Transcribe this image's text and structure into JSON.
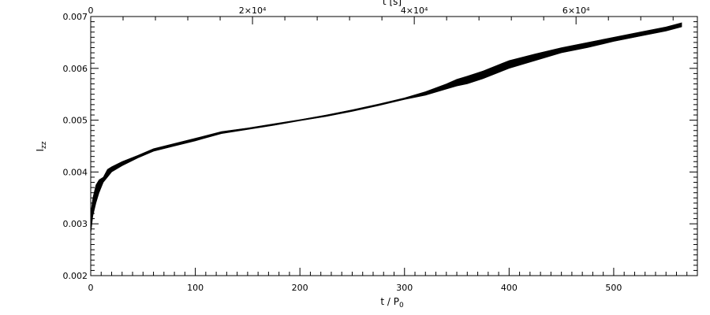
{
  "chart_data": {
    "type": "line",
    "xlabel": "t / P",
    "xlabel_sub": "0",
    "x2label": "t [s]",
    "ylabel": "I",
    "ylabel_sub": "zz",
    "xlim": [
      0,
      580
    ],
    "x2lim": [
      0,
      75000
    ],
    "ylim": [
      0.002,
      0.007
    ],
    "x_ticks": [
      0,
      100,
      200,
      300,
      400,
      500
    ],
    "x_tick_labels": [
      "0",
      "100",
      "200",
      "300",
      "400",
      "500"
    ],
    "x2_ticks": [
      0,
      20000,
      40000,
      60000
    ],
    "x2_tick_labels": [
      "0",
      "2×10⁴",
      "4×10⁴",
      "6×10⁴"
    ],
    "y_ticks": [
      0.002,
      0.003,
      0.004,
      0.005,
      0.006,
      0.007
    ],
    "y_tick_labels": [
      "0.002",
      "0.003",
      "0.004",
      "0.005",
      "0.006",
      "0.007"
    ],
    "grid": false,
    "series": [
      {
        "x": [
          0,
          2,
          5,
          8,
          12,
          16,
          20,
          30,
          45,
          60,
          80,
          100,
          125,
          150,
          175,
          200,
          225,
          250,
          275,
          300,
          320,
          340,
          350,
          360,
          375,
          400,
          425,
          450,
          475,
          500,
          525,
          550,
          565
        ],
        "y_upper": [
          0.0032,
          0.0035,
          0.00375,
          0.00385,
          0.0039,
          0.00405,
          0.0041,
          0.0042,
          0.00432,
          0.00445,
          0.00455,
          0.00465,
          0.00478,
          0.00485,
          0.00493,
          0.00501,
          0.0051,
          0.0052,
          0.00531,
          0.00543,
          0.00555,
          0.0057,
          0.00579,
          0.00585,
          0.00595,
          0.00615,
          0.00628,
          0.0064,
          0.0065,
          0.0066,
          0.0067,
          0.0068,
          0.00688
        ],
        "y_lower": [
          0.0028,
          0.00315,
          0.0034,
          0.0036,
          0.0038,
          0.0039,
          0.004,
          0.00412,
          0.00427,
          0.0044,
          0.0045,
          0.0046,
          0.00474,
          0.00482,
          0.0049,
          0.00499,
          0.00507,
          0.00517,
          0.00528,
          0.0054,
          0.00548,
          0.0056,
          0.00566,
          0.0057,
          0.0058,
          0.006,
          0.00615,
          0.0063,
          0.0064,
          0.00652,
          0.00662,
          0.00672,
          0.0068
        ]
      }
    ]
  }
}
